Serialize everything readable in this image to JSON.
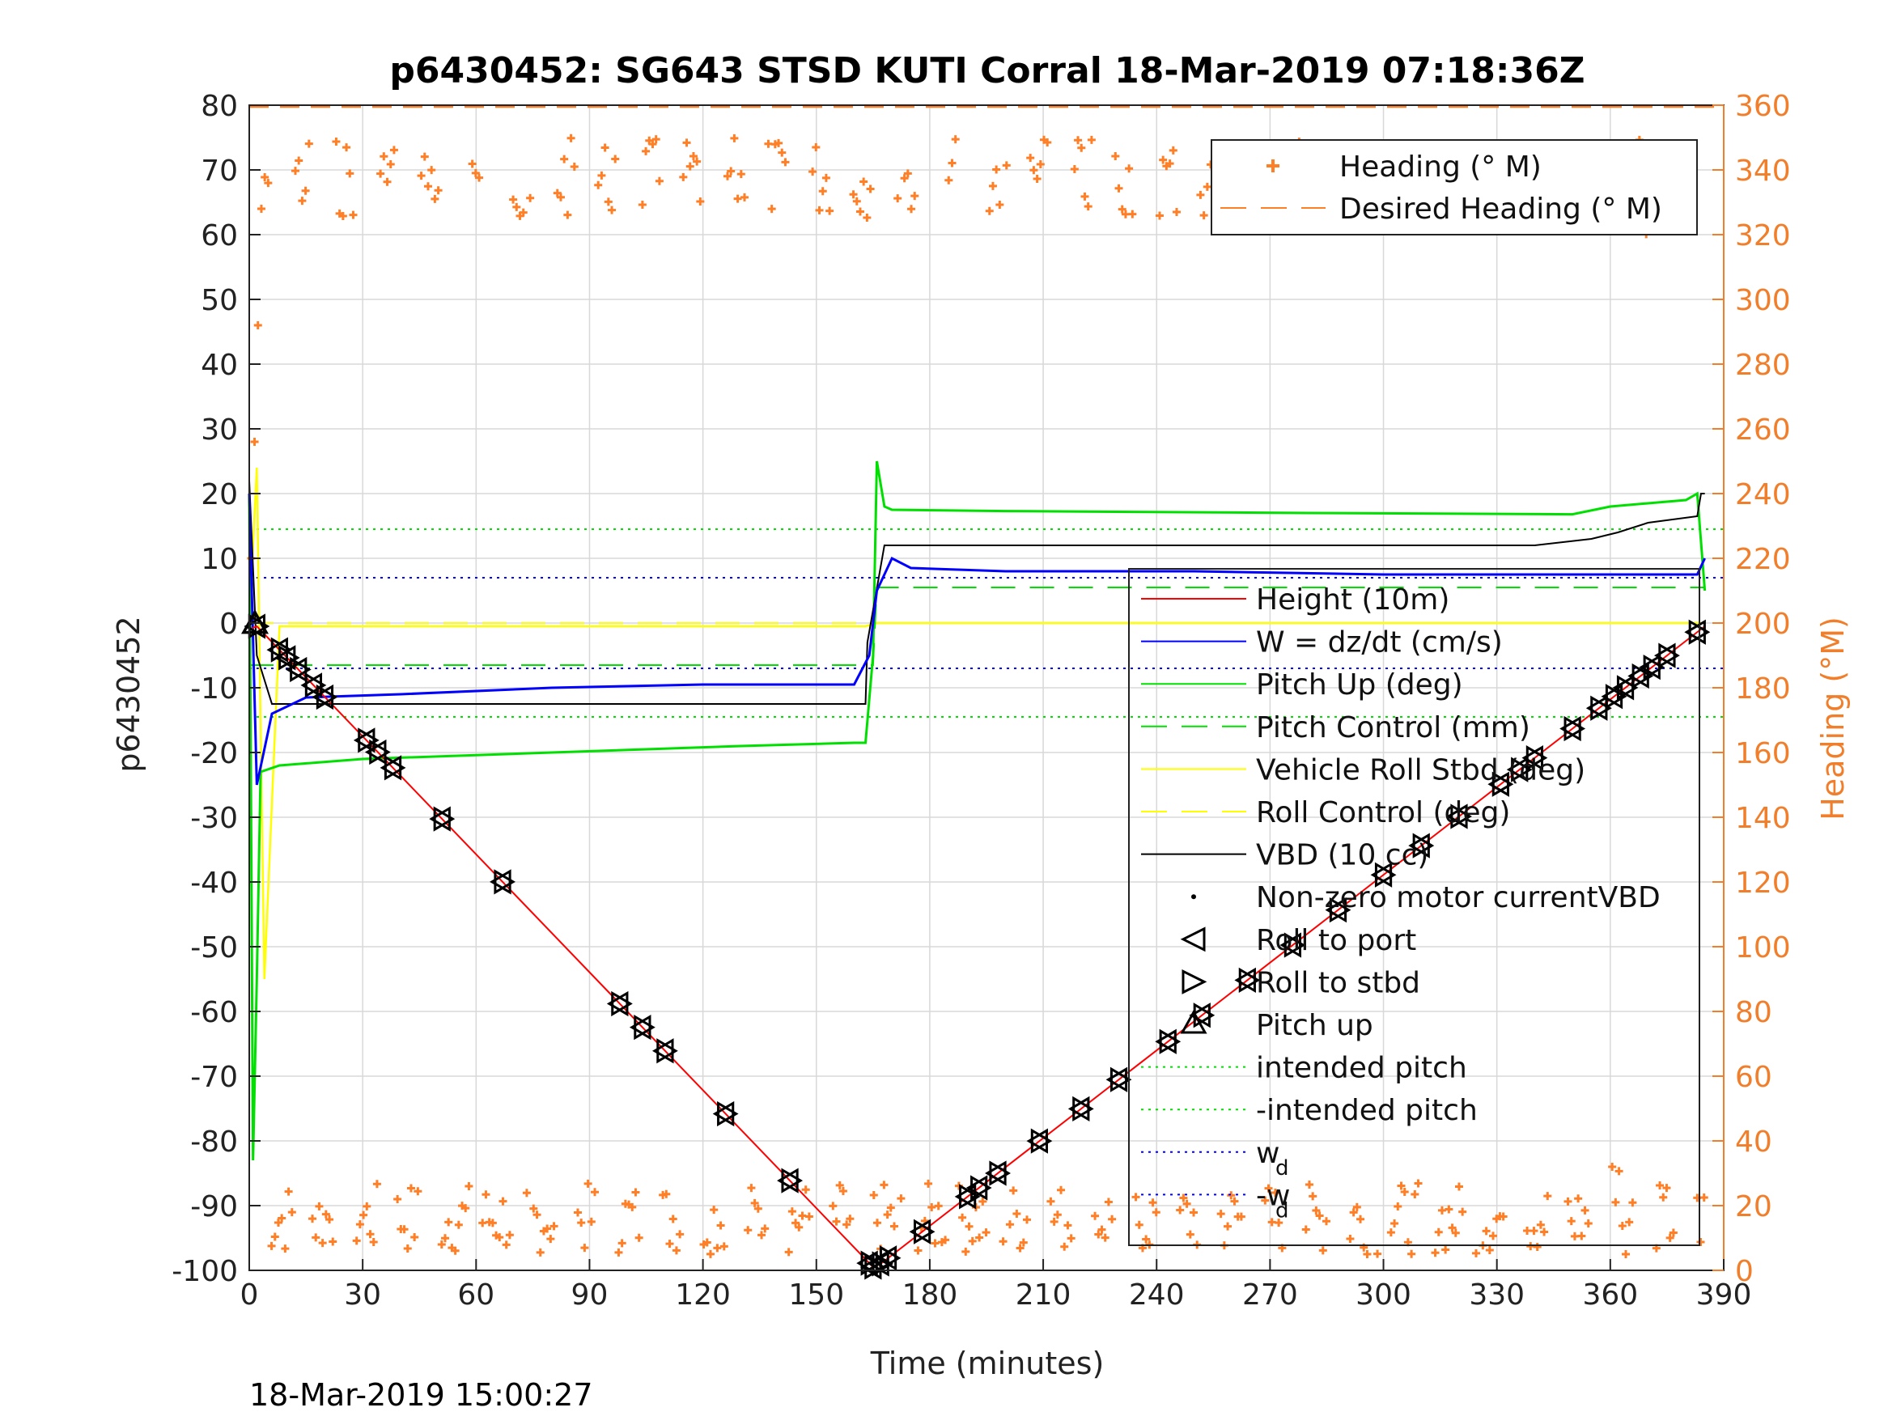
{
  "chart_data": {
    "type": "line",
    "title": "p6430452: SG643 STSD KUTI Corral 18-Mar-2019 07:18:36Z",
    "xlabel": "Time (minutes)",
    "ylabel": "p6430452",
    "y2label": "Heading (°M)",
    "footer": "18-Mar-2019 15:00:27",
    "xlim": [
      0,
      390
    ],
    "ylim": [
      -100,
      80
    ],
    "y2lim": [
      0,
      360
    ],
    "xticks": [
      0,
      30,
      60,
      90,
      120,
      150,
      180,
      210,
      240,
      270,
      300,
      330,
      360,
      390
    ],
    "yticks": [
      -100,
      -90,
      -80,
      -70,
      -60,
      -50,
      -40,
      -30,
      -20,
      -10,
      0,
      10,
      20,
      30,
      40,
      50,
      60,
      70,
      80
    ],
    "y2ticks": [
      0,
      20,
      40,
      60,
      80,
      100,
      120,
      140,
      160,
      180,
      200,
      220,
      240,
      260,
      280,
      300,
      320,
      340,
      360
    ],
    "grid": true,
    "colors": {
      "height": "#ff0000",
      "w": "#0000ff",
      "pitch": "#00e000",
      "roll": "#ffff00",
      "vbd": "#000000",
      "heading": "#ff7f27",
      "axis_right": "#f07e2a"
    },
    "legend_right": [
      {
        "label": "Heading (° M)",
        "style": "plus",
        "color": "#ff7f27"
      },
      {
        "label": "Desired Heading (° M)",
        "style": "dashed",
        "color": "#ff7f27"
      }
    ],
    "legend_left": [
      {
        "label": "Height (10m)",
        "style": "solid",
        "color": "#ff0000"
      },
      {
        "label": "W = dz/dt (cm/s)",
        "style": "solid",
        "color": "#0000ff"
      },
      {
        "label": "Pitch Up (deg)",
        "style": "solid",
        "color": "#00e000"
      },
      {
        "label": "Pitch Control (mm)",
        "style": "dashed",
        "color": "#00e000"
      },
      {
        "label": "Vehicle Roll Stbd (deg)",
        "style": "solid",
        "color": "#ffff00"
      },
      {
        "label": "Roll Control (deg)",
        "style": "dashed",
        "color": "#ffff00"
      },
      {
        "label": "VBD (10 cc)",
        "style": "solid",
        "color": "#000000"
      },
      {
        "label": "Non-zero motor currentVBD",
        "style": "dot",
        "color": "#000000"
      },
      {
        "label": "Roll to port",
        "style": "tri-left",
        "color": "#000000"
      },
      {
        "label": "Roll to stbd",
        "style": "tri-right",
        "color": "#000000"
      },
      {
        "label": "Pitch up",
        "style": "tri-up",
        "color": "#000000"
      },
      {
        "label": "intended pitch",
        "style": "dotted",
        "color": "#00e000"
      },
      {
        "label": "-intended pitch",
        "style": "dotted",
        "color": "#00e000"
      },
      {
        "label": "w",
        "sub": "d",
        "style": "dotted",
        "color": "#0000ff"
      },
      {
        "label": "-w",
        "sub": "d",
        "style": "dotted",
        "color": "#0000ff"
      }
    ],
    "series": {
      "height": {
        "x": [
          0,
          2,
          165,
          167,
          385
        ],
        "y": [
          -1,
          -0.5,
          -99.5,
          -99,
          -0.5
        ]
      },
      "w": {
        "x": [
          0,
          2,
          6,
          15,
          40,
          80,
          120,
          150,
          160,
          164,
          166,
          170,
          175,
          200,
          250,
          300,
          350,
          383,
          385
        ],
        "y": [
          20,
          -25,
          -14,
          -11.5,
          -11,
          -10,
          -9.5,
          -9.5,
          -9.5,
          -5,
          5,
          10,
          8.5,
          8,
          8,
          7.5,
          7.5,
          7.5,
          10
        ]
      },
      "pitch_up": {
        "x": [
          0,
          1,
          2,
          3,
          8,
          30,
          80,
          130,
          160,
          163,
          165,
          166,
          168,
          170,
          200,
          280,
          350,
          360,
          380,
          383,
          385
        ],
        "y": [
          20,
          -83,
          -55,
          -23,
          -22,
          -21,
          -20,
          -19,
          -18.5,
          -18.5,
          -5,
          25,
          18,
          17.5,
          17.3,
          17,
          16.8,
          18,
          19,
          20,
          5
        ]
      },
      "pitch_control": {
        "x": [
          0,
          165,
          166,
          385
        ],
        "y": [
          -6.5,
          -6.5,
          5.5,
          5.5
        ]
      },
      "roll": {
        "x": [
          0,
          2,
          4,
          8,
          163,
          166,
          170,
          385
        ],
        "y": [
          0,
          24,
          -55,
          -0.5,
          -0.5,
          0,
          0,
          0
        ]
      },
      "roll_control": {
        "x": [
          0,
          385
        ],
        "y": [
          0,
          0
        ]
      },
      "vbd": {
        "x": [
          0,
          2,
          6,
          15,
          163,
          163.5,
          168,
          340,
          355,
          362,
          370,
          383,
          384,
          385
        ],
        "y": [
          22,
          -5,
          -12.5,
          -12.5,
          -12.5,
          -3,
          12,
          12,
          13,
          14,
          15.5,
          16.5,
          20,
          20
        ]
      },
      "intended_pitch": [
        14.5,
        -14.5
      ],
      "wd": [
        7,
        -7
      ],
      "pitch_up_marker": {
        "x": 1.5,
        "y": -0.2
      },
      "roll_markers": {
        "x": [
          2,
          8,
          10,
          13,
          17,
          20,
          31,
          34,
          38,
          51,
          67,
          98,
          104,
          110,
          126,
          143,
          164,
          165,
          167,
          169,
          178,
          190,
          193,
          198,
          209,
          220,
          230,
          243,
          252,
          264,
          276,
          288,
          300,
          310,
          320,
          331,
          336,
          340,
          350,
          357,
          361,
          364,
          368,
          371,
          375,
          383
        ]
      },
      "heading_desired": 359.5
    }
  }
}
